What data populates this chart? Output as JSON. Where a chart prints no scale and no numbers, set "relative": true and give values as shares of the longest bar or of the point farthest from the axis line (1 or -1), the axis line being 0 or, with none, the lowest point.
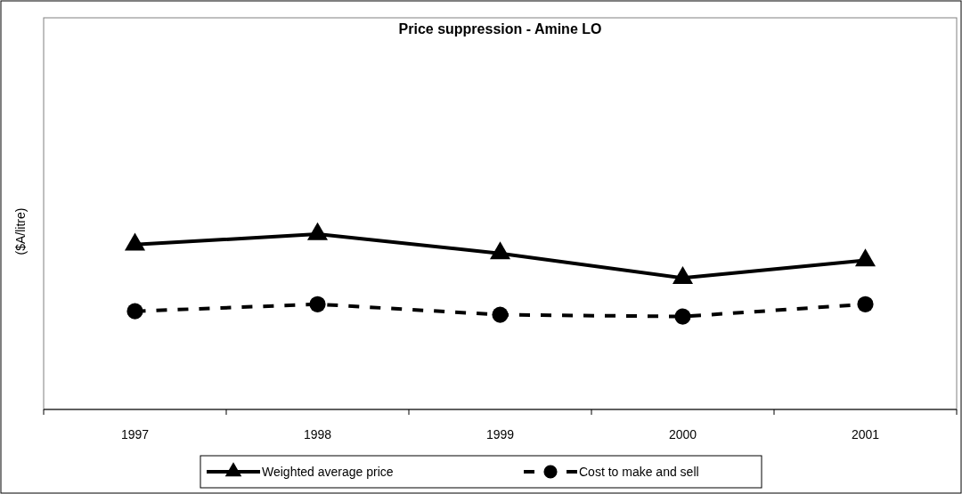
{
  "chart_data": {
    "type": "line",
    "title": "Price suppression - Amine LO",
    "ylabel": "($A/litre)",
    "relative": true,
    "categories": [
      "1997",
      "1998",
      "1999",
      "2000",
      "2001"
    ],
    "legend": "bottom",
    "series": [
      {
        "name": "Weighted average price",
        "color": "#000000",
        "marker": "triangle",
        "line_style": "solid",
        "values": [
          0.94,
          1,
          0.89,
          0.75,
          0.85
        ]
      },
      {
        "name": "Cost to make and sell",
        "color": "#000000",
        "marker": "circle",
        "line_style": "dashed",
        "values": [
          0.56,
          0.6,
          0.54,
          0.53,
          0.6
        ]
      }
    ]
  }
}
